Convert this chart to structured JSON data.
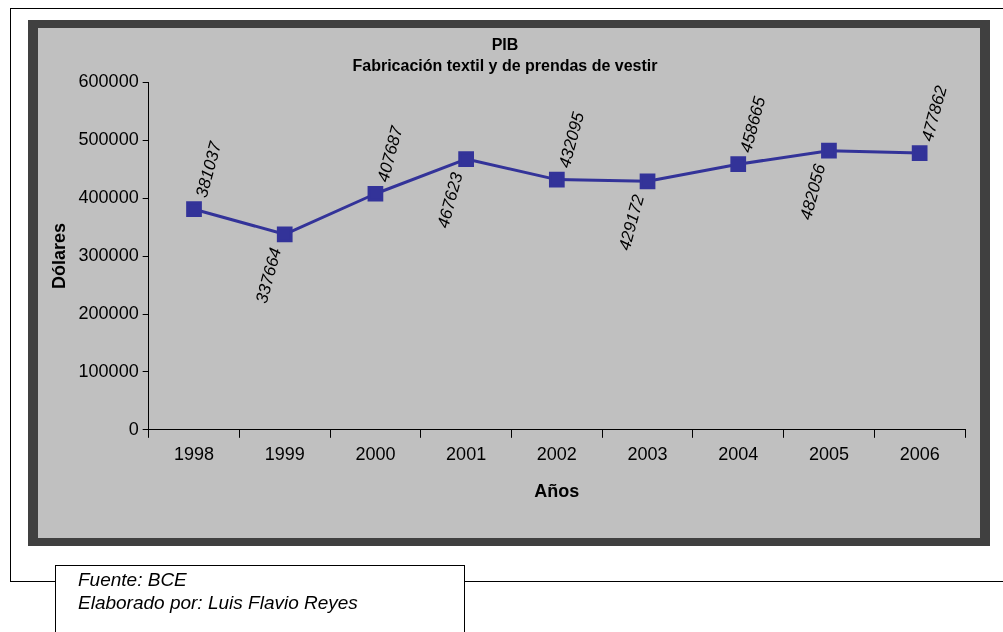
{
  "chart_data": {
    "type": "line",
    "title": "PIB",
    "subtitle": "Fabricación textil y de prendas de vestir",
    "xlabel": "Años",
    "ylabel": "Dólares",
    "categories": [
      "1998",
      "1999",
      "2000",
      "2001",
      "2002",
      "2003",
      "2004",
      "2005",
      "2006"
    ],
    "series": [
      {
        "color": "#333399",
        "values": [
          381037,
          337664,
          407687,
          467623,
          432095,
          429172,
          458665,
          482056,
          477862
        ]
      }
    ],
    "ylim": [
      0,
      600000
    ],
    "yticks": [
      0,
      100000,
      200000,
      300000,
      400000,
      500000,
      600000
    ],
    "grid": false,
    "legend": false,
    "marker": "square",
    "line_style": "solid",
    "data_labels": true,
    "annotations": [
      "Fuente: BCE",
      "Elaborado por: Luis Flavio Reyes"
    ]
  }
}
